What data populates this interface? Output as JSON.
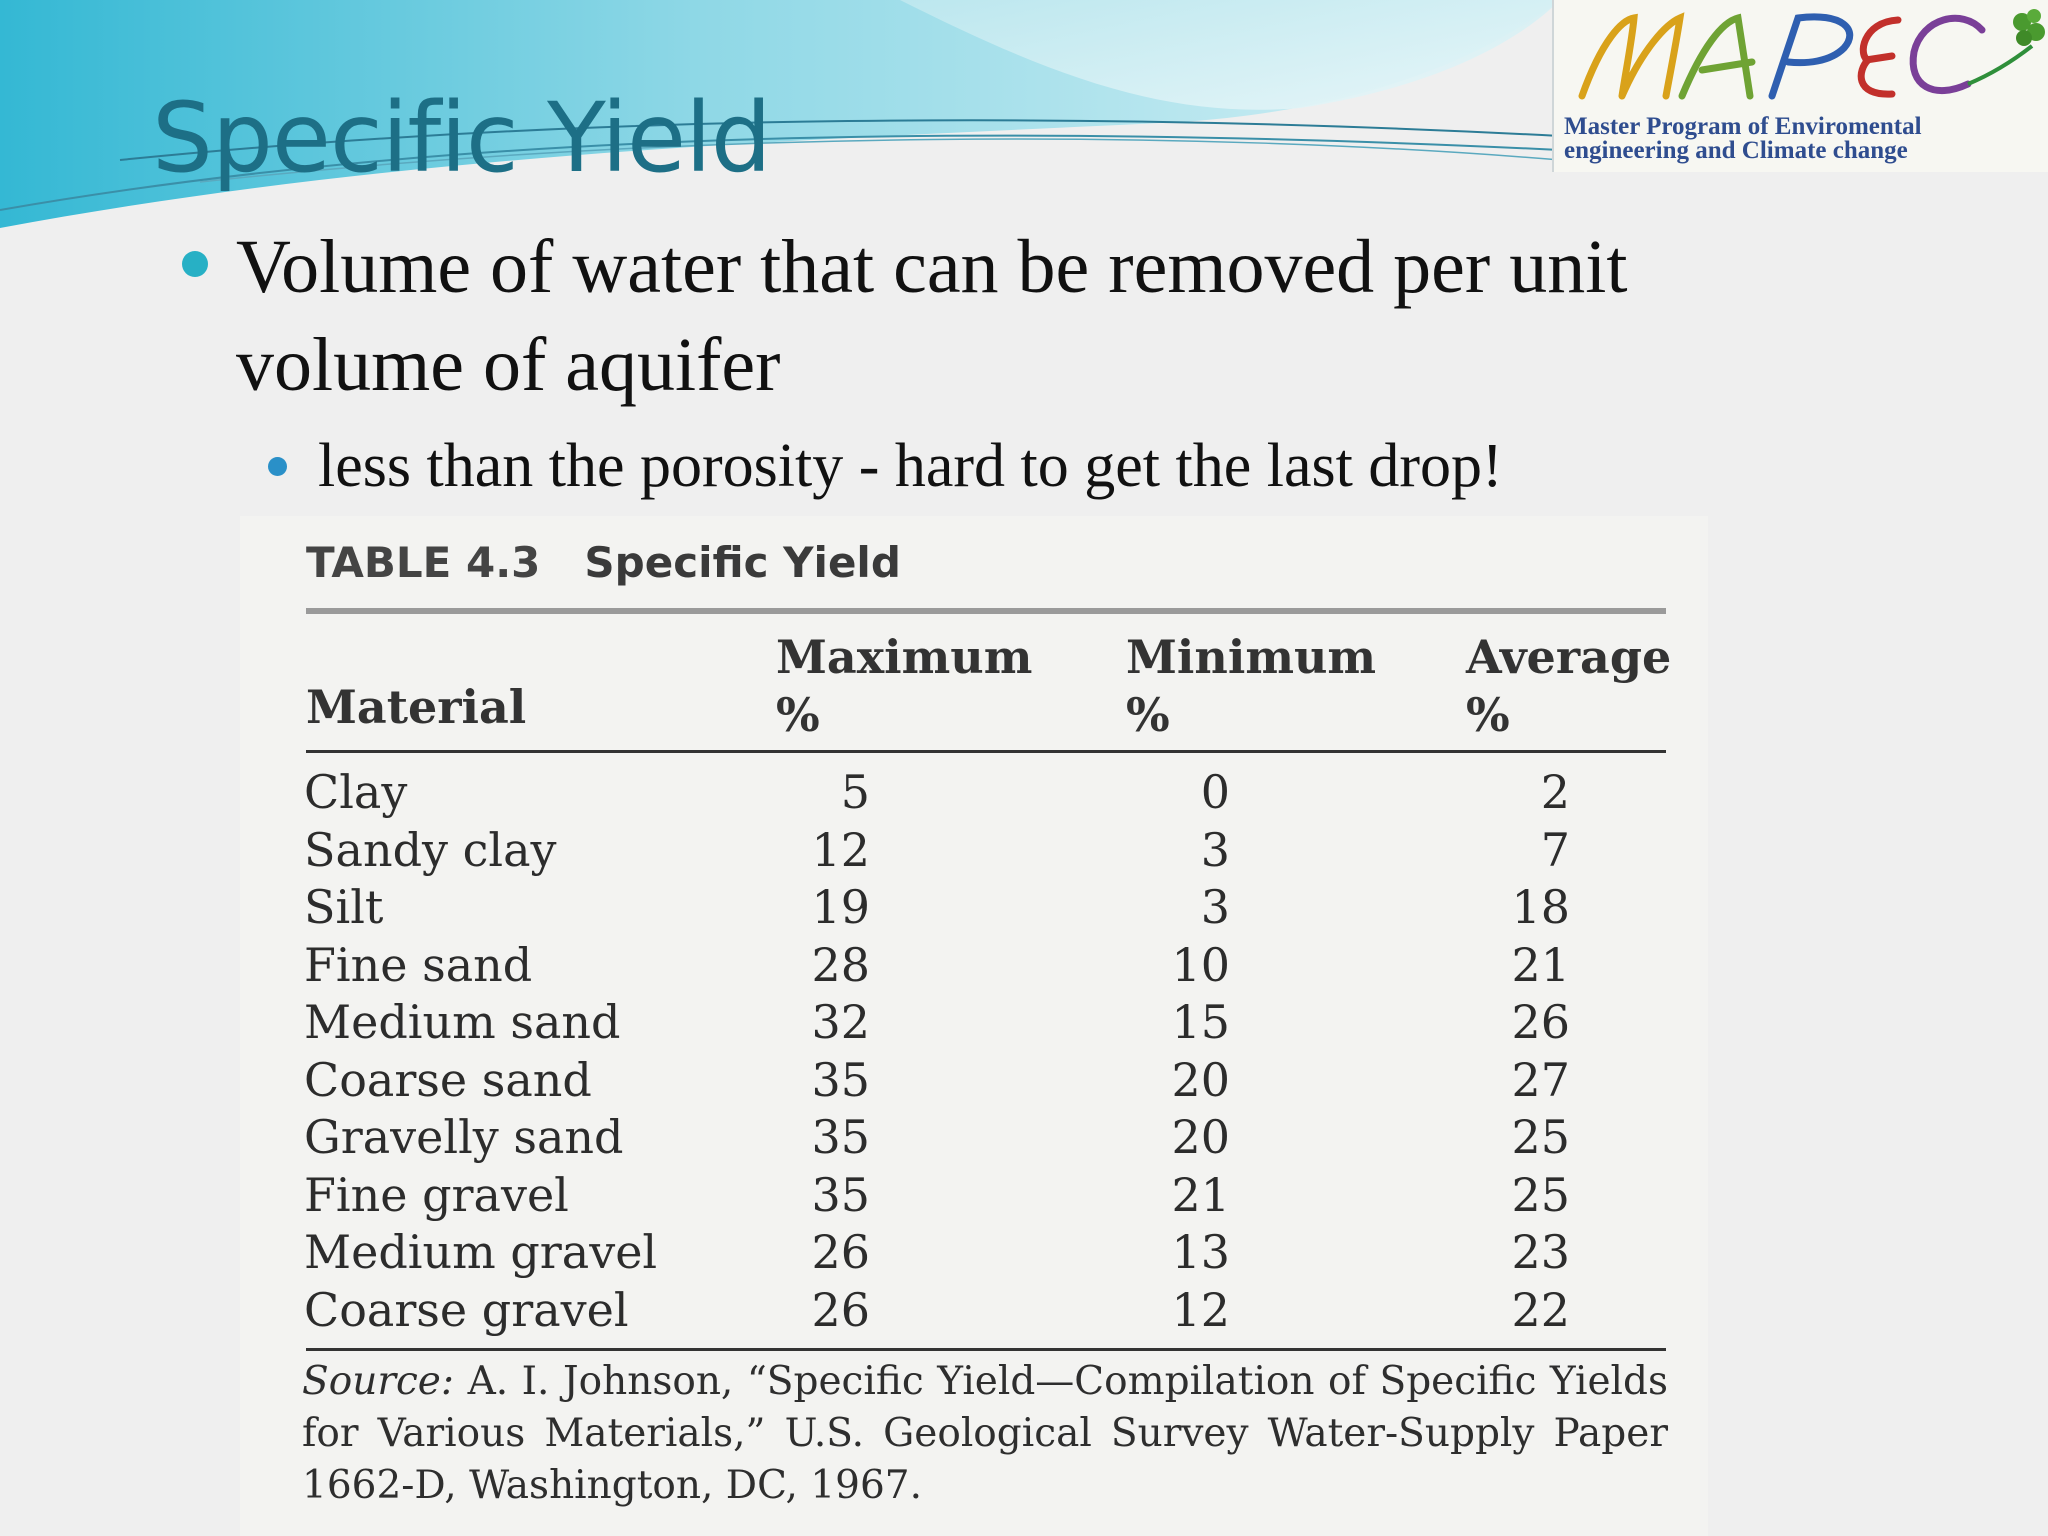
{
  "slide": {
    "title": "Specific Yield",
    "bullets": [
      {
        "text": "Volume of water that can be removed per unit volume of aquifer"
      }
    ],
    "sub_bullets": [
      {
        "text": "less than the porosity - hard to get the last drop!"
      }
    ]
  },
  "logo": {
    "name": "MAPEC",
    "line1": "Master Program of Enviromental",
    "line2": "engineering and Climate change"
  },
  "table": {
    "label": "TABLE 4.3",
    "caption": "Specific Yield",
    "headers": {
      "material": "Material",
      "maximum": "Maximum",
      "maximum_unit": "%",
      "minimum": "Minimum",
      "minimum_unit": "%",
      "average": "Average",
      "average_unit": "%"
    },
    "rows": [
      {
        "material": "Clay",
        "maximum": "5",
        "minimum": "0",
        "average": "2"
      },
      {
        "material": "Sandy clay",
        "maximum": "12",
        "minimum": "3",
        "average": "7"
      },
      {
        "material": "Silt",
        "maximum": "19",
        "minimum": "3",
        "average": "18"
      },
      {
        "material": "Fine sand",
        "maximum": "28",
        "minimum": "10",
        "average": "21"
      },
      {
        "material": "Medium sand",
        "maximum": "32",
        "minimum": "15",
        "average": "26"
      },
      {
        "material": "Coarse sand",
        "maximum": "35",
        "minimum": "20",
        "average": "27"
      },
      {
        "material": "Gravelly sand",
        "maximum": "35",
        "minimum": "20",
        "average": "25"
      },
      {
        "material": "Fine gravel",
        "maximum": "35",
        "minimum": "21",
        "average": "25"
      },
      {
        "material": "Medium gravel",
        "maximum": "26",
        "minimum": "13",
        "average": "23"
      },
      {
        "material": "Coarse gravel",
        "maximum": "26",
        "minimum": "12",
        "average": "22"
      }
    ],
    "source_label": "Source:",
    "source_text": "A. I. Johnson, “Specific Yield—Compilation of Specific Yields for Various Materials,” U.S. Geological Survey Water-Supply Paper 1662-D, Washington, DC, 1967."
  },
  "colors": {
    "title": "#1d6f86",
    "bullet_main": "#27b0c5",
    "bullet_sub": "#2a90c8",
    "swoosh": "#8fd8e6"
  }
}
